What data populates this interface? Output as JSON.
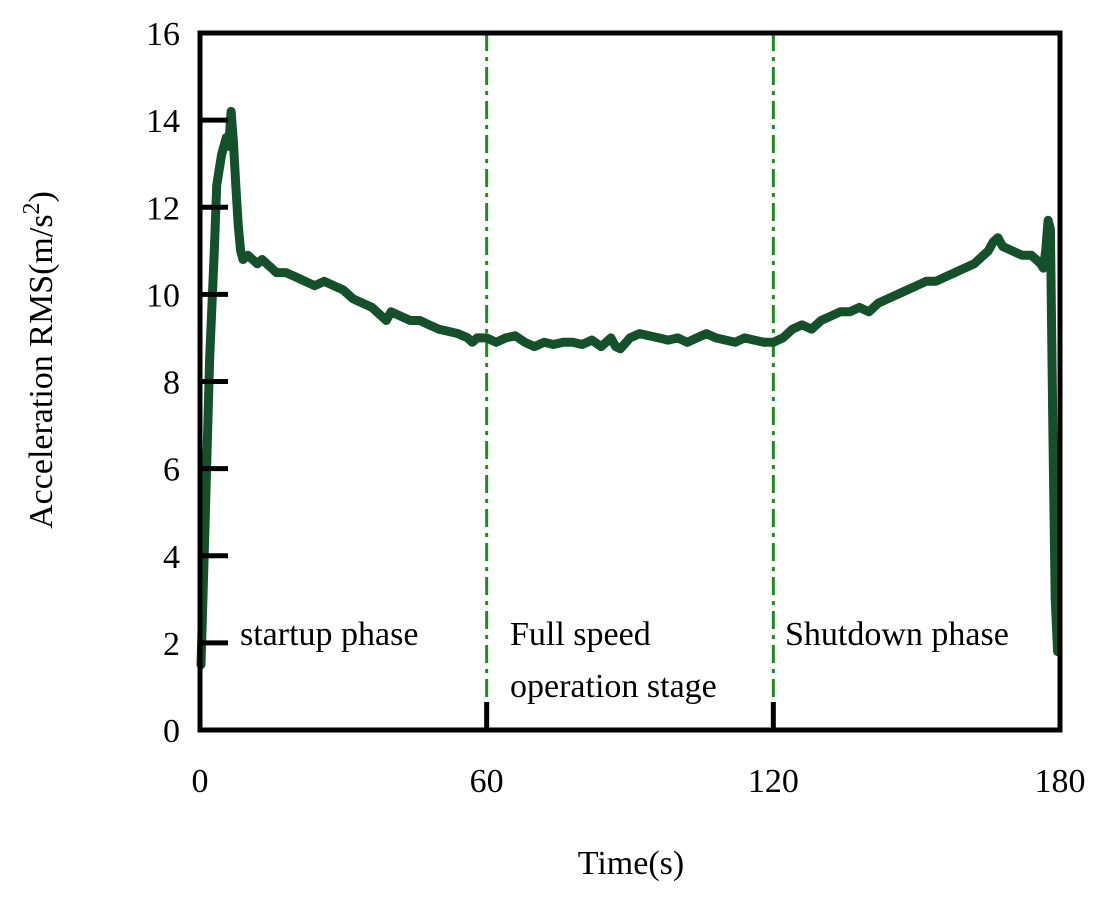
{
  "chart_data": {
    "type": "line",
    "xlabel": "Time(s)",
    "ylabel_main": "Acceleration RMS(m/s",
    "ylabel_sup": "2",
    "ylabel_close": ")",
    "xlim": [
      0,
      180
    ],
    "ylim": [
      0,
      16
    ],
    "xticks": [
      0,
      60,
      120,
      180
    ],
    "yticks": [
      0,
      2,
      4,
      6,
      8,
      10,
      12,
      14,
      16
    ],
    "line_color": "#14502a",
    "divider_color": "#1e8c1e",
    "dividers": [
      60,
      120
    ],
    "phase_labels": {
      "startup": "startup phase",
      "full_line1": "Full speed",
      "full_line2": "operation stage",
      "shutdown": "Shutdown phase"
    },
    "series": [
      {
        "name": "Acceleration RMS",
        "x": [
          0.2,
          1.0,
          2.0,
          3.0,
          3.5,
          4.5,
          5.5,
          6.0,
          6.5,
          7.0,
          7.5,
          8.0,
          8.5,
          9.0,
          10.0,
          11.0,
          12.0,
          13.0,
          14.0,
          15.0,
          16.0,
          18.0,
          20.0,
          22.0,
          24.0,
          26.0,
          28.0,
          30.0,
          32.0,
          34.0,
          36.0,
          38.0,
          39.0,
          40.0,
          42.0,
          44.0,
          46.0,
          48.0,
          50.0,
          52.0,
          54.0,
          56.0,
          57.0,
          58.0,
          60.0,
          62.0,
          64.0,
          66.0,
          68.0,
          70.0,
          72.0,
          74.0,
          76.0,
          78.0,
          80.0,
          82.0,
          84.0,
          86.0,
          87.0,
          88.0,
          90.0,
          92.0,
          94.0,
          96.0,
          98.0,
          100.0,
          102.0,
          104.0,
          106.0,
          108.0,
          110.0,
          112.0,
          114.0,
          116.0,
          118.0,
          120.0,
          122.0,
          124.0,
          126.0,
          128.0,
          130.0,
          132.0,
          134.0,
          136.0,
          138.0,
          140.0,
          142.0,
          144.0,
          146.0,
          148.0,
          150.0,
          152.0,
          154.0,
          156.0,
          158.0,
          160.0,
          162.0,
          164.0,
          165.0,
          166.0,
          167.0,
          168.0,
          170.0,
          172.0,
          174.0,
          175.0,
          176.0,
          176.5,
          177.0,
          177.5,
          178.0,
          178.5,
          179.0,
          179.5
        ],
        "y": [
          1.5,
          4.5,
          8.5,
          11.0,
          12.5,
          13.2,
          13.6,
          13.4,
          14.2,
          13.5,
          12.5,
          11.6,
          11.0,
          10.8,
          10.9,
          10.8,
          10.7,
          10.8,
          10.7,
          10.6,
          10.5,
          10.5,
          10.4,
          10.3,
          10.2,
          10.3,
          10.2,
          10.1,
          9.9,
          9.8,
          9.7,
          9.5,
          9.4,
          9.6,
          9.5,
          9.4,
          9.4,
          9.3,
          9.2,
          9.15,
          9.1,
          9.0,
          8.9,
          9.0,
          9.0,
          8.9,
          9.0,
          9.05,
          8.9,
          8.8,
          8.9,
          8.85,
          8.9,
          8.9,
          8.85,
          8.95,
          8.8,
          9.0,
          8.8,
          8.75,
          9.0,
          9.1,
          9.05,
          9.0,
          8.95,
          9.0,
          8.9,
          9.0,
          9.1,
          9.0,
          8.95,
          8.9,
          9.0,
          8.95,
          8.9,
          8.9,
          9.0,
          9.2,
          9.3,
          9.2,
          9.4,
          9.5,
          9.6,
          9.6,
          9.7,
          9.6,
          9.8,
          9.9,
          10.0,
          10.1,
          10.2,
          10.3,
          10.3,
          10.4,
          10.5,
          10.6,
          10.7,
          10.9,
          11.0,
          11.2,
          11.3,
          11.1,
          11.0,
          10.9,
          10.9,
          10.8,
          10.7,
          10.6,
          11.0,
          11.7,
          11.5,
          7.0,
          3.0,
          1.8
        ]
      }
    ]
  }
}
